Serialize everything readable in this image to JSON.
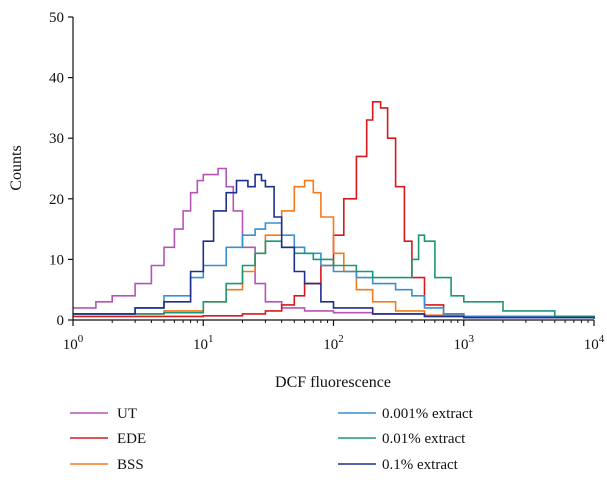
{
  "chart_data": {
    "type": "line",
    "title": "",
    "xlabel": "DCF fluorescence",
    "ylabel": "Counts",
    "x_scale": "log",
    "xlim": [
      1,
      10000
    ],
    "ylim": [
      0,
      50
    ],
    "y_ticks": [
      0,
      10,
      20,
      30,
      40,
      50
    ],
    "y_tick_labels": [
      "0",
      "10",
      "20",
      "30",
      "40",
      "50"
    ],
    "x_ticks": [
      1,
      10,
      100,
      1000,
      10000
    ],
    "x_tick_base": "10",
    "x_tick_exponents": [
      "0",
      "1",
      "2",
      "3",
      "4"
    ],
    "grid": false,
    "legend_position": "bottom",
    "series": [
      {
        "name": "UT",
        "color": "#b455b6",
        "x": [
          1,
          1.5,
          2,
          3,
          4,
          5,
          6,
          7,
          8,
          9,
          10,
          11,
          12,
          13,
          15,
          17,
          20,
          25,
          30,
          40,
          60,
          100,
          200,
          500,
          1000,
          10000
        ],
        "y": [
          2,
          3,
          4,
          6,
          9,
          12,
          15,
          18,
          21,
          23,
          24,
          24,
          24,
          25,
          22,
          18,
          12,
          6,
          3,
          2,
          1.5,
          1.2,
          1,
          0.6,
          0.4,
          0.2
        ]
      },
      {
        "name": "EDE",
        "color": "#d7191c",
        "x": [
          1,
          5,
          10,
          20,
          30,
          40,
          50,
          60,
          80,
          100,
          120,
          150,
          180,
          200,
          230,
          260,
          300,
          350,
          400,
          500,
          700,
          1000,
          10000
        ],
        "y": [
          0.6,
          0.6,
          0.7,
          1,
          1.5,
          2.5,
          4,
          6,
          9,
          14,
          20,
          27,
          33,
          36,
          35,
          30,
          22,
          13,
          7,
          2.5,
          1,
          0.6,
          0.3
        ]
      },
      {
        "name": "BSS",
        "color": "#f4791f",
        "x": [
          1,
          3,
          5,
          10,
          15,
          20,
          25,
          30,
          40,
          50,
          60,
          70,
          80,
          100,
          120,
          150,
          200,
          300,
          500,
          1000,
          10000
        ],
        "y": [
          1,
          1,
          1.5,
          3,
          5,
          8,
          11,
          14,
          18,
          22,
          23,
          21,
          17,
          11,
          8,
          5,
          3,
          1.5,
          0.8,
          0.5,
          0.3
        ]
      },
      {
        "name": "0.001% extract",
        "color": "#3a8fd0",
        "x": [
          1,
          3,
          5,
          8,
          10,
          15,
          20,
          25,
          30,
          40,
          50,
          60,
          80,
          100,
          150,
          200,
          300,
          400,
          500,
          700,
          1000,
          10000
        ],
        "y": [
          1,
          2,
          4,
          7,
          9,
          12,
          14,
          15,
          16,
          14,
          12,
          11,
          9,
          8,
          7,
          6,
          5,
          4,
          2,
          1,
          0.6,
          0.3
        ]
      },
      {
        "name": "0.01% extract",
        "color": "#1b9873",
        "x": [
          1,
          5,
          10,
          15,
          20,
          25,
          30,
          40,
          50,
          70,
          100,
          150,
          200,
          300,
          400,
          450,
          500,
          600,
          800,
          1000,
          2000,
          5000,
          10000
        ],
        "y": [
          1,
          1.2,
          3,
          6,
          9,
          11,
          13,
          12,
          11,
          10,
          9,
          8,
          7,
          7,
          10,
          14,
          13,
          7,
          4,
          3,
          1.5,
          0.6,
          0.4
        ]
      },
      {
        "name": "0.1% extract",
        "color": "#1f2f8c",
        "x": [
          1,
          3,
          5,
          8,
          10,
          12,
          15,
          18,
          20,
          22,
          25,
          28,
          30,
          35,
          40,
          50,
          60,
          80,
          100,
          200,
          500,
          1000,
          10000
        ],
        "y": [
          1,
          2,
          3,
          8,
          13,
          18,
          21,
          23,
          23,
          22,
          24,
          23,
          22,
          17,
          12,
          8,
          6,
          3,
          2,
          1,
          0.6,
          0.4,
          0.2
        ]
      }
    ]
  }
}
